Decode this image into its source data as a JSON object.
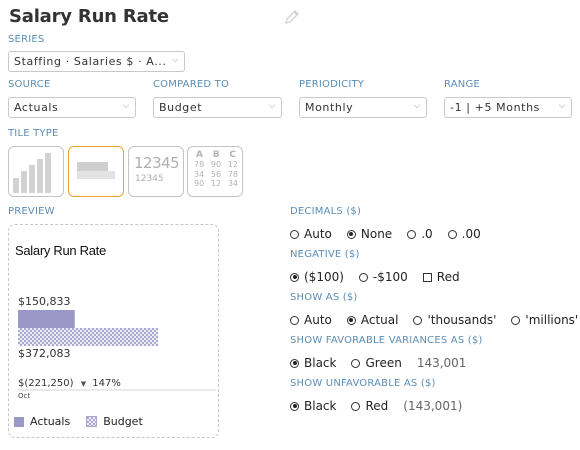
{
  "title": "Salary Run Rate",
  "series": {
    "label": "SERIES",
    "value": "Staffing · Salaries $ · A..."
  },
  "source": {
    "label": "SOURCE",
    "value": "Actuals"
  },
  "compared_to": {
    "label": "COMPARED TO",
    "value": "Budget"
  },
  "periodicity": {
    "label": "PERIODICITY",
    "value": "Monthly"
  },
  "range": {
    "label": "RANGE",
    "value": "-1 | +5 Months"
  },
  "tile_type": {
    "label": "TILE TYPE",
    "selected": 1,
    "number_tile": {
      "big": "12345",
      "small": "12345"
    },
    "table_tile": {
      "headers": [
        "A",
        "B",
        "C"
      ],
      "rows": [
        [
          "78",
          "90",
          "12"
        ],
        [
          "34",
          "56",
          "78"
        ],
        [
          "90",
          "12",
          "34"
        ]
      ]
    }
  },
  "preview": {
    "label": "PREVIEW",
    "title": "Salary Run Rate",
    "actual_value": "$150,833",
    "budget_value": "$372,083",
    "variance": "$(221,250)",
    "percent": "147%",
    "period": "Oct",
    "legend_actuals": "Actuals",
    "legend_budget": "Budget",
    "actual_color": "#9b97c7",
    "budget_color": "#9b97c7"
  },
  "chart_data": {
    "type": "bar",
    "categories": [
      "Oct"
    ],
    "series": [
      {
        "name": "Actuals",
        "values": [
          150833
        ]
      },
      {
        "name": "Budget",
        "values": [
          372083
        ]
      }
    ]
  },
  "decimals": {
    "label": "DECIMALS ($)",
    "options": [
      "Auto",
      "None",
      ".0",
      ".00"
    ],
    "selected": 1
  },
  "negative": {
    "label": "NEGATIVE ($)",
    "options": [
      "($100)",
      "-$100"
    ],
    "selected": 0,
    "red_label": "Red",
    "red_checked": false
  },
  "show_as": {
    "label": "SHOW AS ($)",
    "options": [
      "Auto",
      "Actual",
      "'thousands'",
      "'millions'"
    ],
    "selected": 1
  },
  "favorable": {
    "label": "SHOW FAVORABLE VARIANCES AS ($)",
    "options": [
      "Black",
      "Green"
    ],
    "selected": 0,
    "sample": "143,001"
  },
  "unfavorable": {
    "label": "SHOW UNFAVORABLE AS ($)",
    "options": [
      "Black",
      "Red"
    ],
    "selected": 0,
    "sample": "(143,001)"
  }
}
